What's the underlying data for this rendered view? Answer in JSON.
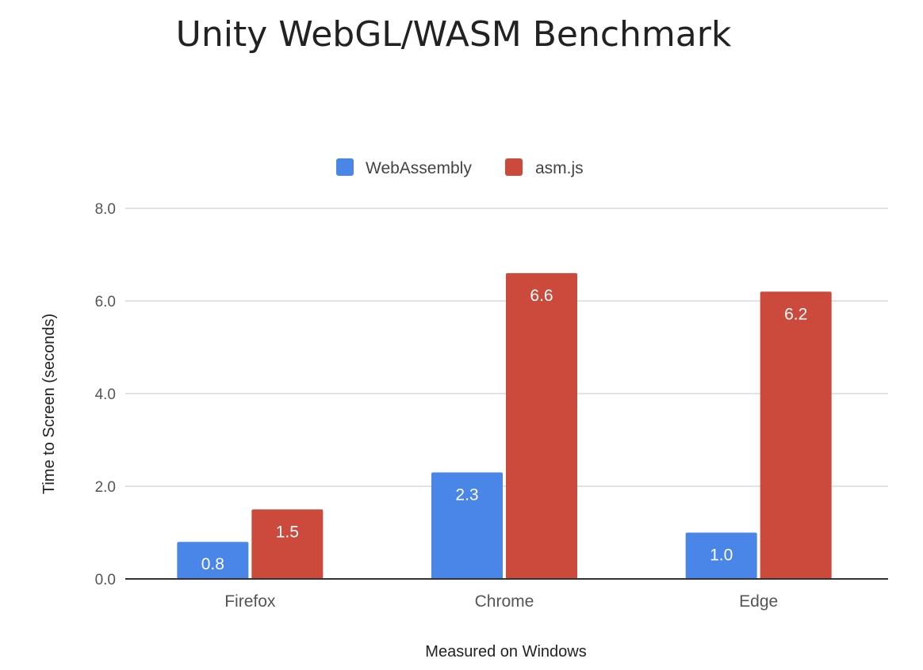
{
  "chart_data": {
    "type": "bar",
    "title": "Unity WebGL/WASM Benchmark",
    "xlabel": "Measured on Windows",
    "ylabel": "Time to Screen (seconds)",
    "categories": [
      "Firefox",
      "Chrome",
      "Edge"
    ],
    "series": [
      {
        "name": "WebAssembly",
        "color": "#4a86e8",
        "values": [
          0.8,
          2.3,
          1.0
        ],
        "labels": [
          "0.8",
          "2.3",
          "1.0"
        ]
      },
      {
        "name": "asm.js",
        "color": "#cc4a3c",
        "values": [
          1.5,
          6.6,
          6.2
        ],
        "labels": [
          "1.5",
          "6.6",
          "6.2"
        ]
      }
    ],
    "ylim": [
      0,
      8
    ],
    "yticks": [
      0,
      2,
      4,
      6,
      8
    ],
    "ytick_labels": [
      "0.0",
      "2.0",
      "4.0",
      "6.0",
      "8.0"
    ],
    "grid": true,
    "legend_position": "top"
  }
}
